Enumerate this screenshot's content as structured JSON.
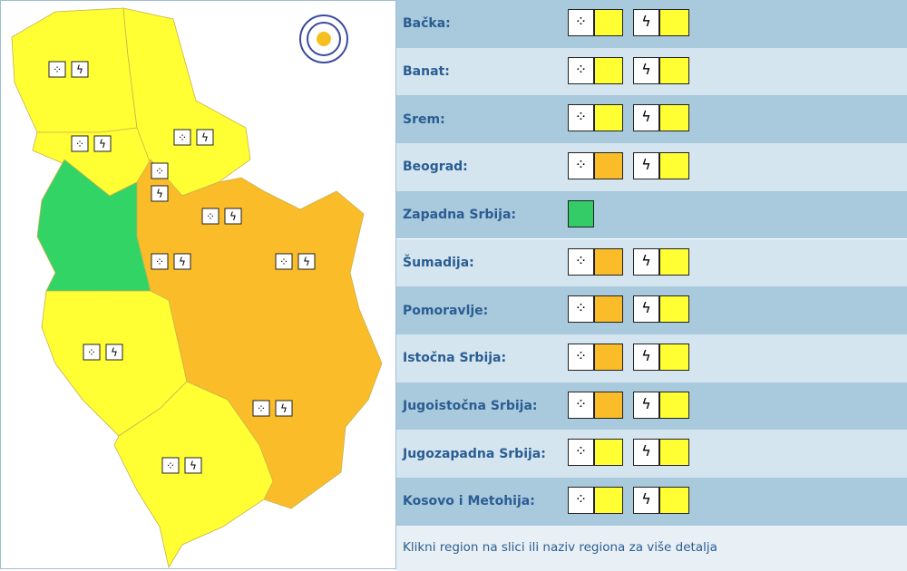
{
  "table": {
    "rows": [
      {
        "name": "Bačka:",
        "rain": "#ffff33",
        "thunder": "#ffff33"
      },
      {
        "name": "Banat:",
        "rain": "#ffff33",
        "thunder": "#ffff33"
      },
      {
        "name": "Srem:",
        "rain": "#ffff33",
        "thunder": "#ffff33"
      },
      {
        "name": "Beograd:",
        "rain": "#fbbc2a",
        "thunder": "#ffff33"
      },
      {
        "name": "Zapadna Srbija:",
        "green": "#33cc66"
      },
      {
        "name": "Šumadija:",
        "rain": "#fbbc2a",
        "thunder": "#ffff33"
      },
      {
        "name": "Pomoravlje:",
        "rain": "#fbbc2a",
        "thunder": "#ffff33"
      },
      {
        "name": "Istočna Srbija:",
        "rain": "#fbbc2a",
        "thunder": "#ffff33"
      },
      {
        "name": "Jugoistočna Srbija:",
        "rain": "#fbbc2a",
        "thunder": "#ffff33"
      },
      {
        "name": "Jugozapadna Srbija:",
        "rain": "#ffff33",
        "thunder": "#ffff33"
      },
      {
        "name": "Kosovo i Metohija:",
        "rain": "#ffff33",
        "thunder": "#ffff33"
      }
    ],
    "footer": "Klikni region na slici ili naziv regiona za više detalja"
  }
}
